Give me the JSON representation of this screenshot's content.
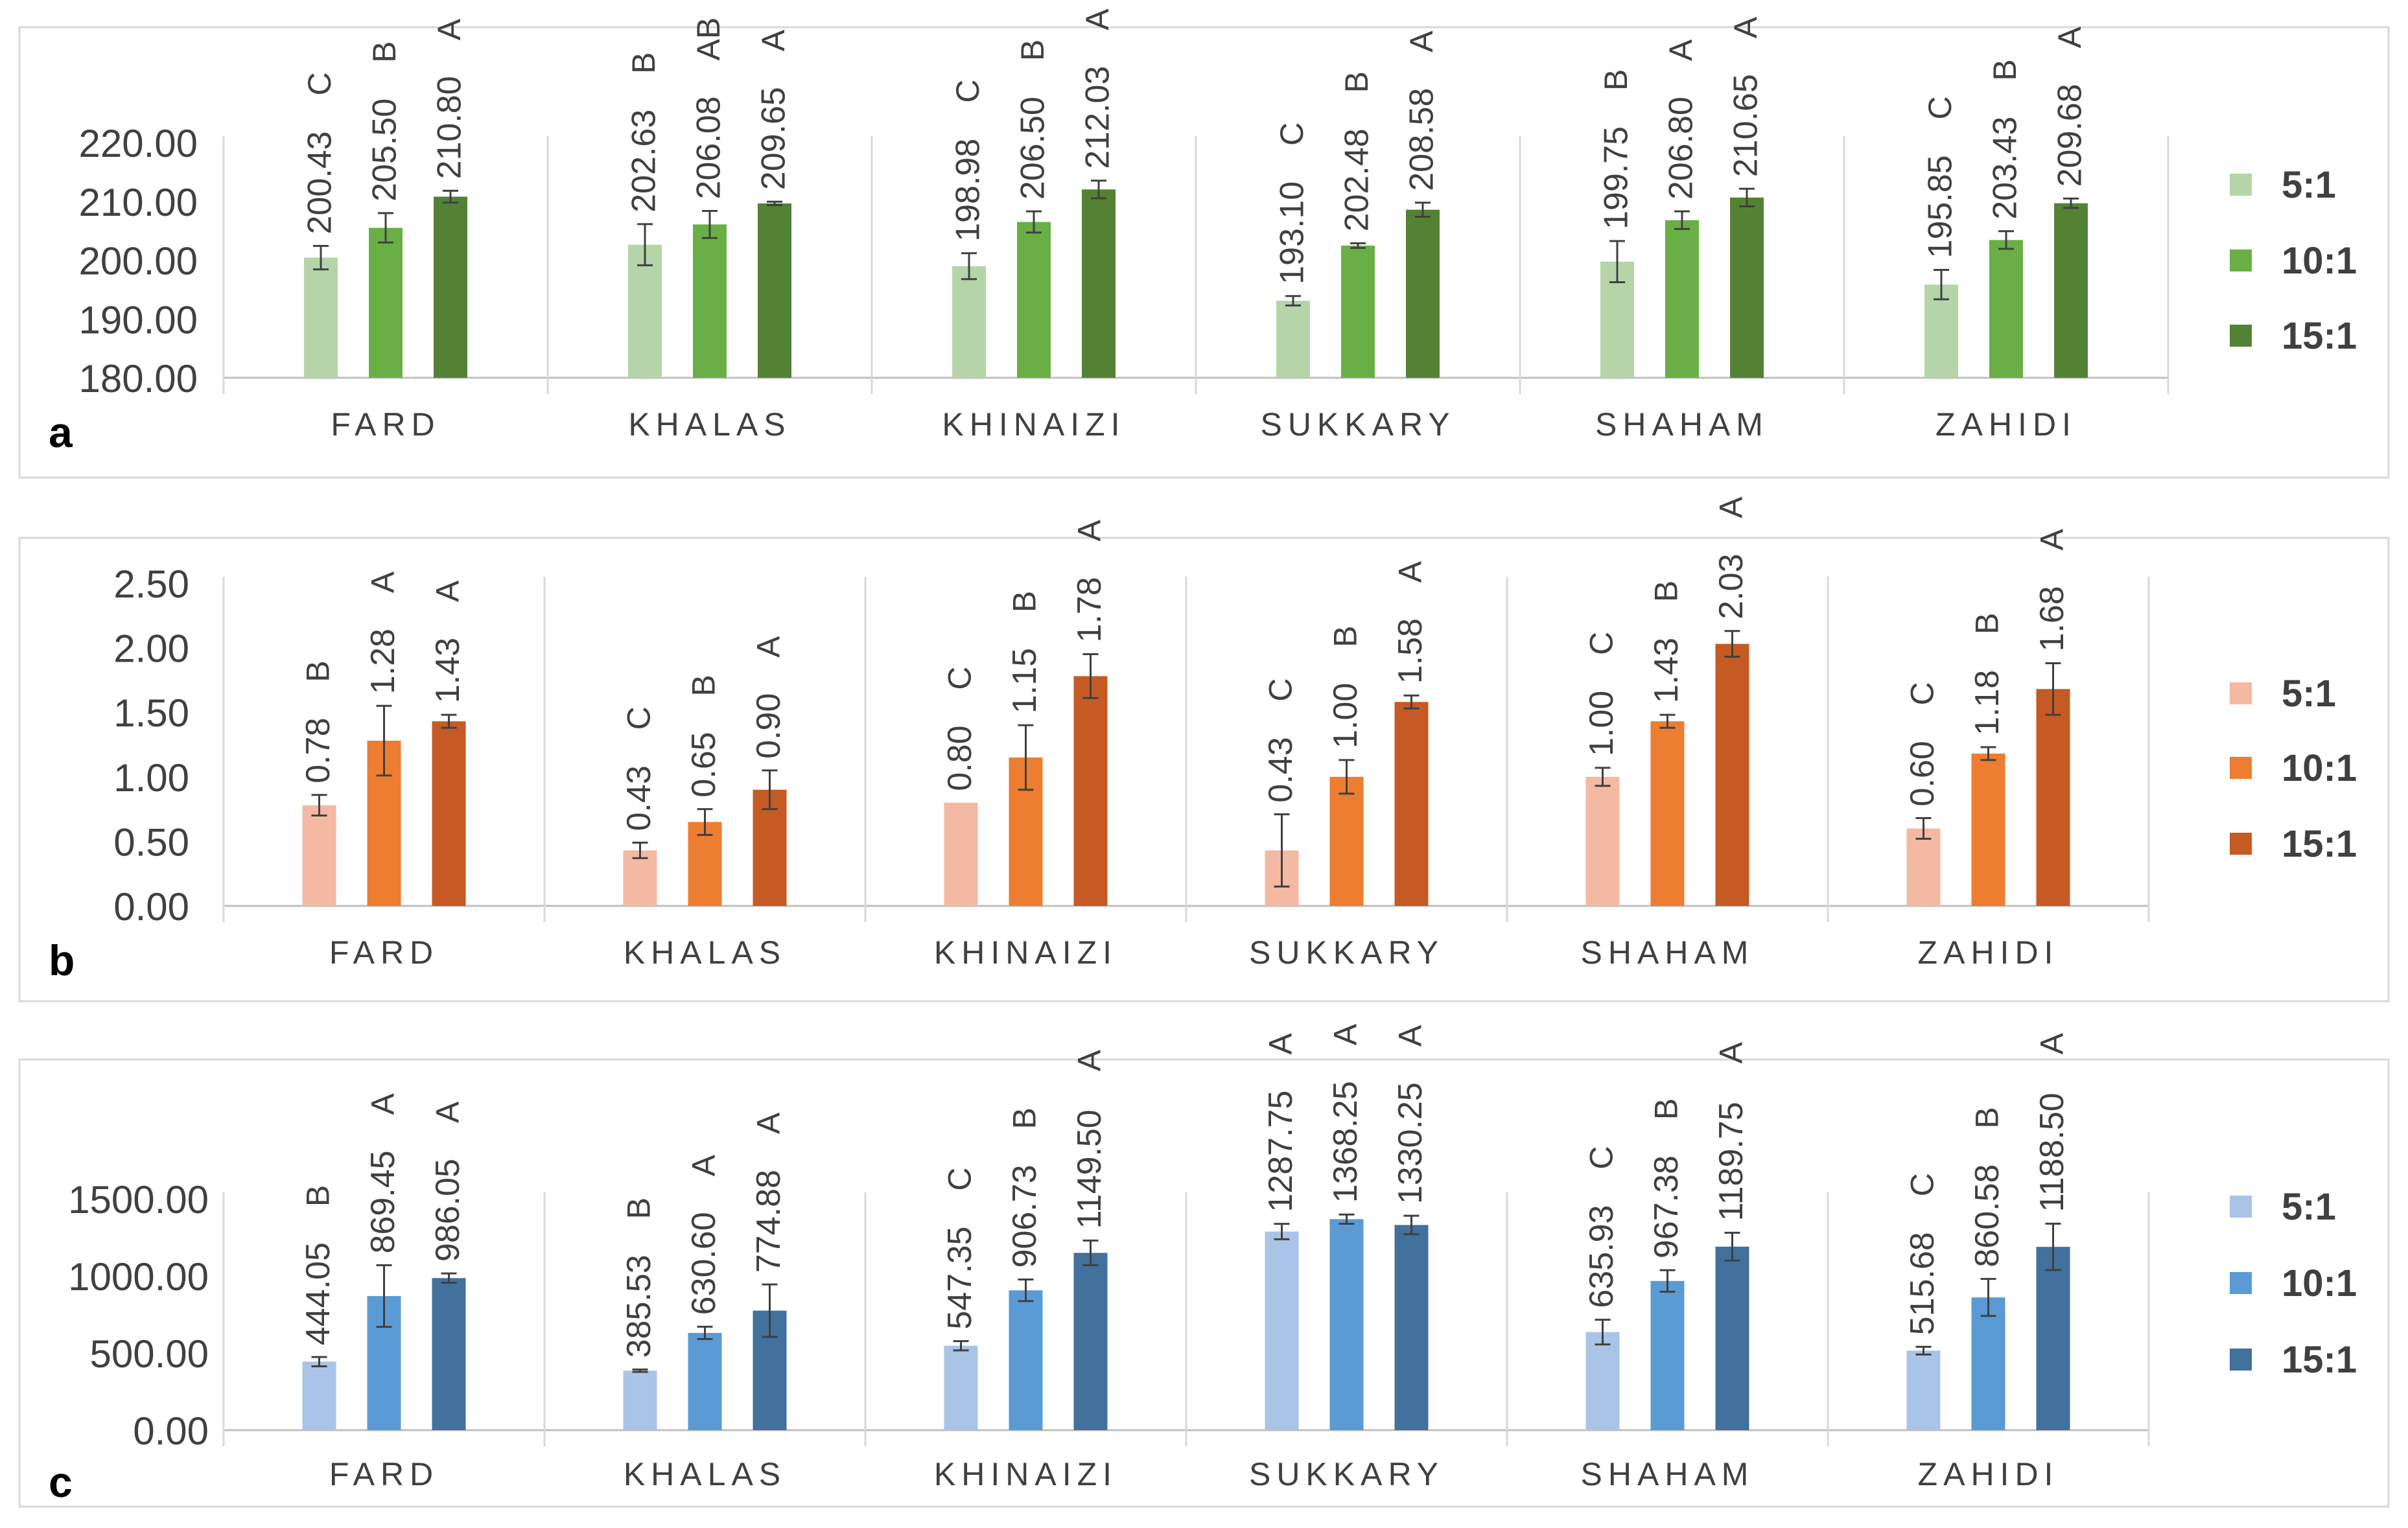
{
  "chart_data": [
    {
      "type": "bar",
      "panel_label": "a",
      "categories": [
        "FARD",
        "KHALAS",
        "KHINAIZI",
        "SUKKARY",
        "SHAHAM",
        "ZAHIDI"
      ],
      "ylim": [
        180,
        220
      ],
      "yticks": [
        "180.00",
        "190.00",
        "200.00",
        "210.00",
        "220.00"
      ],
      "ytick_values": [
        180,
        190,
        200,
        210,
        220
      ],
      "grid": false,
      "legend_position": "right",
      "series": [
        {
          "name": "5:1",
          "color": "#b5d5a8",
          "values": [
            200.43,
            202.63,
            198.98,
            193.1,
            199.75,
            195.85
          ],
          "errors": [
            2.0,
            3.5,
            2.2,
            0.8,
            3.5,
            2.5
          ],
          "value_labels": [
            "200.43",
            "202.63",
            "198.98",
            "193.10",
            "199.75",
            "195.85"
          ],
          "letters": [
            "C",
            "B",
            "C",
            "C",
            "B",
            "C"
          ]
        },
        {
          "name": "10:1",
          "color": "#6aaf46",
          "values": [
            205.5,
            206.08,
            206.5,
            202.48,
            206.8,
            203.43
          ],
          "errors": [
            2.5,
            2.3,
            1.8,
            0.4,
            1.5,
            1.5
          ],
          "value_labels": [
            "205.50",
            "206.08",
            "206.50",
            "202.48",
            "206.80",
            "203.43"
          ],
          "letters": [
            "B",
            "AB",
            "B",
            "B",
            "A",
            "B"
          ]
        },
        {
          "name": "15:1",
          "color": "#548235",
          "values": [
            210.8,
            209.65,
            212.03,
            208.58,
            210.65,
            209.68
          ],
          "errors": [
            1.0,
            0.3,
            1.5,
            1.2,
            1.5,
            0.8
          ],
          "value_labels": [
            "210.80",
            "209.65",
            "212.03",
            "208.58",
            "210.65",
            "209.68"
          ],
          "letters": [
            "A",
            "A",
            "A",
            "A",
            "A",
            "A"
          ]
        }
      ]
    },
    {
      "type": "bar",
      "panel_label": "b",
      "categories": [
        "FARD",
        "KHALAS",
        "KHINAIZI",
        "SUKKARY",
        "SHAHAM",
        "ZAHIDI"
      ],
      "ylim": [
        0,
        2.5
      ],
      "yticks": [
        "0.00",
        "0.50",
        "1.00",
        "1.50",
        "2.00",
        "2.50"
      ],
      "ytick_values": [
        0,
        0.5,
        1.0,
        1.5,
        2.0,
        2.5
      ],
      "grid": false,
      "legend_position": "right",
      "series": [
        {
          "name": "5:1",
          "color": "#f4b9a3",
          "values": [
            0.78,
            0.43,
            0.8,
            0.43,
            1.0,
            0.6
          ],
          "errors": [
            0.08,
            0.06,
            0.0,
            0.28,
            0.07,
            0.08
          ],
          "value_labels": [
            "0.78",
            "0.43",
            "0.80",
            "0.43",
            "1.00",
            "0.60"
          ],
          "letters": [
            "B",
            "C",
            "C",
            "C",
            "C",
            "C"
          ]
        },
        {
          "name": "10:1",
          "color": "#ed7d31",
          "values": [
            1.28,
            0.65,
            1.15,
            1.0,
            1.43,
            1.18
          ],
          "errors": [
            0.27,
            0.1,
            0.25,
            0.13,
            0.05,
            0.05
          ],
          "value_labels": [
            "1.28",
            "0.65",
            "1.15",
            "1.00",
            "1.43",
            "1.18"
          ],
          "letters": [
            "A",
            "B",
            "B",
            "B",
            "B",
            "B"
          ]
        },
        {
          "name": "15:1",
          "color": "#c55a24",
          "values": [
            1.43,
            0.9,
            1.78,
            1.58,
            2.03,
            1.68
          ],
          "errors": [
            0.05,
            0.15,
            0.17,
            0.05,
            0.1,
            0.2
          ],
          "value_labels": [
            "1.43",
            "0.90",
            "1.78",
            "1.58",
            "2.03",
            "1.68"
          ],
          "letters": [
            "A",
            "A",
            "A",
            "A",
            "A",
            "A"
          ]
        }
      ]
    },
    {
      "type": "bar",
      "panel_label": "c",
      "categories": [
        "FARD",
        "KHALAS",
        "KHINAIZI",
        "SUKKARY",
        "SHAHAM",
        "ZAHIDI"
      ],
      "ylim": [
        0,
        1500
      ],
      "yticks": [
        "0.00",
        "500.00",
        "1000.00",
        "1500.00"
      ],
      "ytick_values": [
        0,
        500,
        1000,
        1500
      ],
      "grid": false,
      "legend_position": "right",
      "series": [
        {
          "name": "5:1",
          "color": "#a9c4e6",
          "values": [
            444.05,
            385.53,
            547.35,
            1287.75,
            635.93,
            515.68
          ],
          "errors": [
            30,
            8,
            30,
            50,
            80,
            25
          ],
          "value_labels": [
            "444.05",
            "385.53",
            "547.35",
            "1287.75",
            "635.93",
            "515.68"
          ],
          "letters": [
            "B",
            "B",
            "C",
            "A",
            "C",
            "C"
          ]
        },
        {
          "name": "10:1",
          "color": "#5b9bd5",
          "values": [
            869.45,
            630.6,
            906.73,
            1368.25,
            967.38,
            860.58
          ],
          "errors": [
            200,
            40,
            70,
            30,
            70,
            120
          ],
          "value_labels": [
            "869.45",
            "630.60",
            "906.73",
            "1368.25",
            "967.38",
            "860.58"
          ],
          "letters": [
            "A",
            "A",
            "B",
            "A",
            "B",
            "B"
          ]
        },
        {
          "name": "15:1",
          "color": "#41719c",
          "values": [
            986.05,
            774.88,
            1149.5,
            1330.25,
            1189.75,
            1188.5
          ],
          "errors": [
            30,
            170,
            80,
            60,
            90,
            150
          ],
          "value_labels": [
            "986.05",
            "774.88",
            "1149.50",
            "1330.25",
            "1189.75",
            "1188.50"
          ],
          "letters": [
            "A",
            "A",
            "A",
            "A",
            "A",
            "A"
          ]
        }
      ]
    }
  ]
}
